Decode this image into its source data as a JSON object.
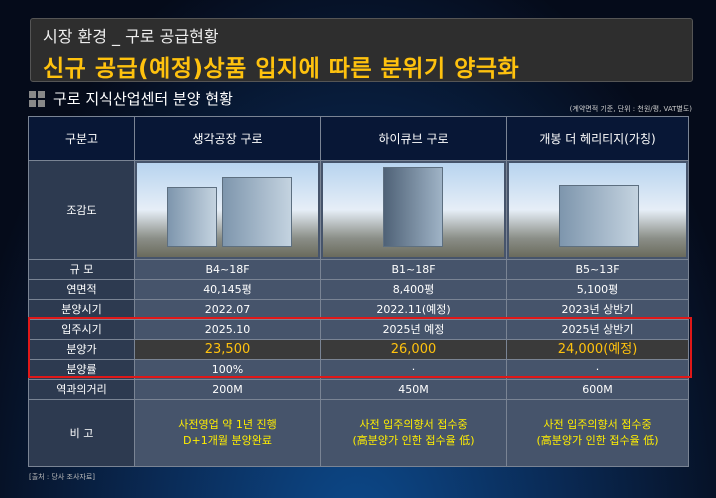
{
  "header": {
    "subtitle": "시장 환경 _ 구로 공급현황",
    "title": "신규 공급(예정)상품 입지에 따른 분위기 양극화"
  },
  "section": {
    "title": "구로 지식산업센터 분양 현황",
    "note": "(계약면적 기준, 단위 : 천원/평, VAT별도)"
  },
  "table": {
    "corner": "구분고",
    "columns": [
      "생각공장 구로",
      "하이큐브 구로",
      "개봉 더 헤리티지(가칭)"
    ],
    "image_label": "조감도",
    "rows": [
      {
        "label": "규   모",
        "values": [
          "B4~18F",
          "B1~18F",
          "B5~13F"
        ]
      },
      {
        "label": "연면적",
        "values": [
          "40,145평",
          "8,400평",
          "5,100평"
        ]
      },
      {
        "label": "분양시기",
        "values": [
          "2022.07",
          "2022.11(예정)",
          "2023년 상반기"
        ]
      },
      {
        "label": "입주시기",
        "values": [
          "2025.10",
          "2025년 예정",
          "2025년 상반기"
        ]
      },
      {
        "label": "분양가",
        "values": [
          "23,500",
          "26,000",
          "24,000(예정)"
        ]
      },
      {
        "label": "분양률",
        "values": [
          "100%",
          "·",
          "·"
        ]
      },
      {
        "label": "역과의거리",
        "values": [
          "200M",
          "450M",
          "600M"
        ]
      }
    ],
    "remark_label": "비   고",
    "remarks": [
      [
        "사전영업 약 1년 진행",
        "D+1개월 분양완료"
      ],
      [
        "사전 입주의향서 접수중",
        "(高분양가 인한 접수율 低)"
      ],
      [
        "사전 입주의향서 접수중",
        "(高분양가 인한 접수율 低)"
      ]
    ]
  },
  "source": "[출처 : 당사 조사자료]",
  "colors": {
    "accent": "#ffc20e",
    "highlight_border": "#e01818",
    "remark_text": "#ffee00"
  }
}
